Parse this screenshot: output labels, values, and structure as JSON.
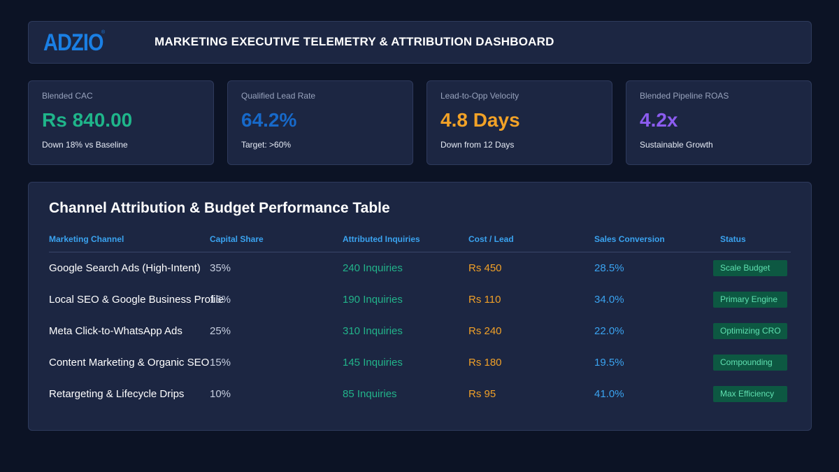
{
  "header": {
    "logo_text": "ADZIO",
    "logo_mark": "®",
    "title": "MARKETING EXECUTIVE TELEMETRY & ATTRIBUTION DASHBOARD"
  },
  "kpis": [
    {
      "label": "Blended CAC",
      "value": "Rs 840.00",
      "sub": "Down 18% vs Baseline",
      "color": "#1fb58a"
    },
    {
      "label": "Qualified Lead Rate",
      "value": "64.2%",
      "sub": "Target: >60%",
      "color": "#1769c9"
    },
    {
      "label": "Lead-to-Opp Velocity",
      "value": "4.8 Days",
      "sub": "Down from 12 Days",
      "color": "#f2a227"
    },
    {
      "label": "Blended Pipeline ROAS",
      "value": "4.2x",
      "sub": "Sustainable Growth",
      "color": "#8c5cf0"
    }
  ],
  "table": {
    "title": "Channel Attribution & Budget Performance Table",
    "columns": [
      "Marketing Channel",
      "Capital Share",
      "Attributed Inquiries",
      "Cost / Lead",
      "Sales Conversion",
      "Status"
    ],
    "rows": [
      {
        "channel": "Google Search Ads (High-Intent)",
        "share": "35%",
        "inquiries": "240 Inquiries",
        "cost": "Rs 450",
        "conversion": "28.5%",
        "status": "Scale Budget"
      },
      {
        "channel": "Local SEO & Google Business Profile",
        "share": "15%",
        "inquiries": "190 Inquiries",
        "cost": "Rs 110",
        "conversion": "34.0%",
        "status": "Primary Engine"
      },
      {
        "channel": "Meta Click-to-WhatsApp Ads",
        "share": "25%",
        "inquiries": "310 Inquiries",
        "cost": "Rs 240",
        "conversion": "22.0%",
        "status": "Optimizing CRO"
      },
      {
        "channel": "Content Marketing & Organic SEO",
        "share": "15%",
        "inquiries": "145 Inquiries",
        "cost": "Rs 180",
        "conversion": "19.5%",
        "status": "Compounding"
      },
      {
        "channel": "Retargeting & Lifecycle Drips",
        "share": "10%",
        "inquiries": "85 Inquiries",
        "cost": "Rs 95",
        "conversion": "41.0%",
        "status": "Max Efficiency"
      }
    ]
  }
}
